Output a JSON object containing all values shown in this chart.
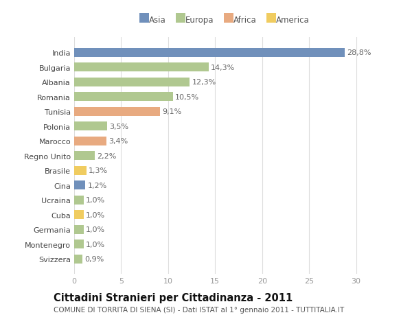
{
  "countries": [
    "India",
    "Bulgaria",
    "Albania",
    "Romania",
    "Tunisia",
    "Polonia",
    "Marocco",
    "Regno Unito",
    "Brasile",
    "Cina",
    "Ucraina",
    "Cuba",
    "Germania",
    "Montenegro",
    "Svizzera"
  ],
  "values": [
    28.8,
    14.3,
    12.3,
    10.5,
    9.1,
    3.5,
    3.4,
    2.2,
    1.3,
    1.2,
    1.0,
    1.0,
    1.0,
    1.0,
    0.9
  ],
  "labels": [
    "28,8%",
    "14,3%",
    "12,3%",
    "10,5%",
    "9,1%",
    "3,5%",
    "3,4%",
    "2,2%",
    "1,3%",
    "1,2%",
    "1,0%",
    "1,0%",
    "1,0%",
    "1,0%",
    "0,9%"
  ],
  "continents": [
    "Asia",
    "Europa",
    "Europa",
    "Europa",
    "Africa",
    "Europa",
    "Africa",
    "Europa",
    "America",
    "Asia",
    "Europa",
    "America",
    "Europa",
    "Europa",
    "Europa"
  ],
  "continent_colors": {
    "Asia": "#7090bb",
    "Europa": "#b0c890",
    "Africa": "#e8aa80",
    "America": "#f0cc60"
  },
  "legend_order": [
    "Asia",
    "Europa",
    "Africa",
    "America"
  ],
  "title": "Cittadini Stranieri per Cittadinanza - 2011",
  "subtitle": "COMUNE DI TORRITA DI SIENA (SI) - Dati ISTAT al 1° gennaio 2011 - TUTTITALIA.IT",
  "xlim": [
    0,
    32
  ],
  "xticks": [
    0,
    5,
    10,
    15,
    20,
    25,
    30
  ],
  "background_color": "#ffffff",
  "plot_bg_color": "#ffffff",
  "grid_color": "#dddddd",
  "bar_height": 0.6,
  "title_fontsize": 10.5,
  "subtitle_fontsize": 7.5,
  "tick_fontsize": 8,
  "label_fontsize": 8,
  "ytick_color": "#444444",
  "xtick_color": "#999999",
  "label_color": "#666666"
}
